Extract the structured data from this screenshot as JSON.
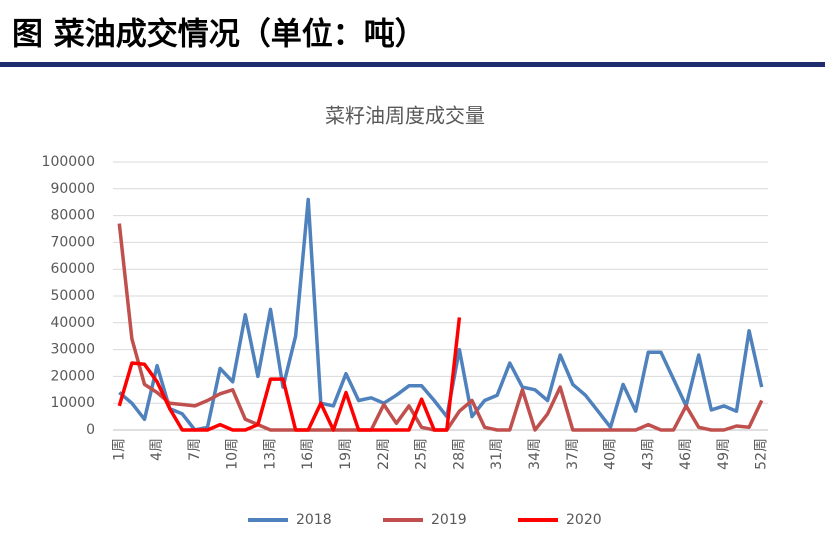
{
  "header": {
    "title": "图  菜油成交情况（单位：吨）"
  },
  "chart_data": {
    "type": "line",
    "title": "菜籽油周度成交量",
    "categories": [
      "1周",
      null,
      null,
      "4周",
      null,
      null,
      "7周",
      null,
      null,
      "10周",
      null,
      null,
      "13周",
      null,
      null,
      "16周",
      null,
      null,
      "19周",
      null,
      null,
      "22周",
      null,
      null,
      "25周",
      null,
      null,
      "28周",
      null,
      null,
      "31周",
      null,
      null,
      "34周",
      null,
      null,
      "37周",
      null,
      null,
      "40周",
      null,
      null,
      "43周",
      null,
      null,
      "46周",
      null,
      null,
      "49周",
      null,
      null,
      "52周"
    ],
    "series": [
      {
        "name": "2018",
        "color": "#4f81bd",
        "values": [
          14000,
          10000,
          4000,
          24000,
          8000,
          6000,
          0,
          1000,
          23000,
          18000,
          43000,
          20000,
          45000,
          16000,
          35000,
          86000,
          10000,
          9000,
          21000,
          11000,
          12000,
          10000,
          13000,
          16500,
          16500,
          11000,
          5000,
          30000,
          5000,
          11000,
          13000,
          25000,
          16000,
          15000,
          11000,
          28000,
          17000,
          13000,
          7000,
          1000,
          17000,
          7000,
          29000,
          29000,
          19000,
          9000,
          28000,
          7500,
          9000,
          7000,
          37000,
          16000
        ]
      },
      {
        "name": "2019",
        "color": "#c0504d",
        "values": [
          77000,
          34000,
          17000,
          14000,
          10000,
          9500,
          9000,
          11000,
          13500,
          15000,
          4000,
          2000,
          0,
          0,
          0,
          0,
          0,
          0,
          0,
          0,
          0,
          9500,
          2500,
          9000,
          1000,
          0,
          0,
          7000,
          11000,
          1000,
          0,
          0,
          15000,
          0,
          6000,
          16000,
          0,
          0,
          0,
          0,
          0,
          0,
          2000,
          0,
          0,
          9000,
          1000,
          0,
          0,
          1500,
          1000,
          11000
        ]
      },
      {
        "name": "2020",
        "color": "#ff0000",
        "values": [
          9000,
          25000,
          24500,
          18000,
          8000,
          0,
          0,
          0,
          2000,
          0,
          0,
          2000,
          19000,
          19000,
          0,
          0,
          10000,
          0,
          14000,
          0,
          0,
          0,
          0,
          0,
          11500,
          0,
          0,
          42000,
          null,
          null,
          null,
          null,
          null,
          null,
          null,
          null,
          null,
          null,
          null,
          null,
          null,
          null,
          null,
          null,
          null,
          null,
          null,
          null,
          null,
          null,
          null,
          null
        ]
      }
    ],
    "ylim": [
      0,
      100000
    ],
    "yticks": [
      0,
      10000,
      20000,
      30000,
      40000,
      50000,
      60000,
      70000,
      80000,
      90000,
      100000
    ],
    "grid": true,
    "legend": "bottom"
  }
}
